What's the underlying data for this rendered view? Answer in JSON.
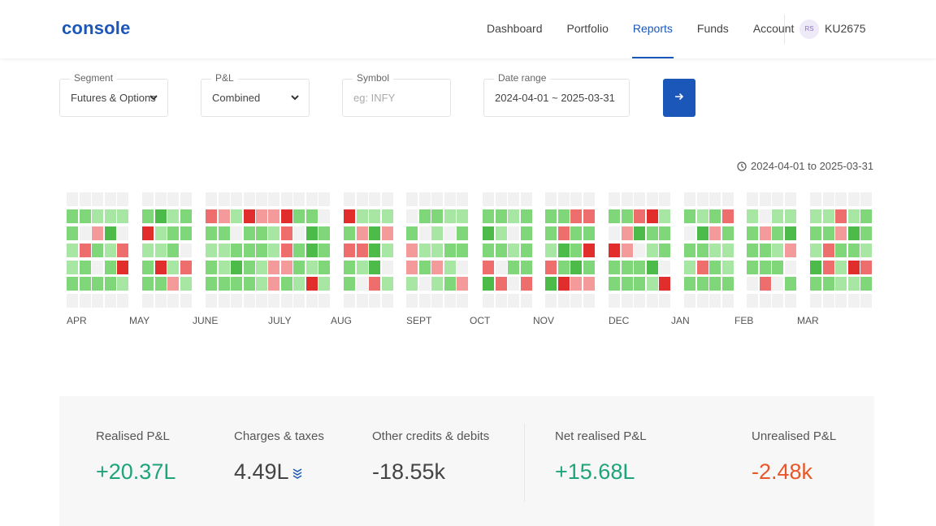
{
  "header": {
    "logo": "console",
    "nav": [
      "Dashboard",
      "Portfolio",
      "Reports",
      "Funds",
      "Account"
    ],
    "active_nav": "Reports",
    "avatar_initials": "RS",
    "user_id": "KU2675"
  },
  "filters": {
    "segment": {
      "label": "Segment",
      "value": "Futures & Options"
    },
    "pnl": {
      "label": "P&L",
      "value": "Combined"
    },
    "symbol": {
      "label": "Symbol",
      "placeholder": "eg: INFY"
    },
    "date_range": {
      "label": "Date range",
      "value": "2024-04-01 ~ 2025-03-31"
    },
    "submit_icon": "arrow-right-icon"
  },
  "range_label": "2024-04-01 to 2025-03-31",
  "heatmap": {
    "months": [
      "APR",
      "MAY",
      "JUNE",
      "JULY",
      "AUG",
      "SEPT",
      "OCT",
      "NOV",
      "DEC",
      "JAN",
      "FEB",
      "MAR"
    ],
    "legend": {
      "empty": "#f1f1f1",
      "profit_light": "#a8e6a3",
      "profit": "#7fd77a",
      "profit_strong": "#4cbb4a",
      "loss_light": "#f59a9a",
      "loss": "#ee6e6e",
      "loss_strong": "#e22d2d"
    }
  },
  "summary": {
    "realised": {
      "label": "Realised P&L",
      "value": "+20.37L"
    },
    "charges": {
      "label": "Charges & taxes",
      "value": "4.49L"
    },
    "other": {
      "label": "Other credits & debits",
      "value": "-18.55k"
    },
    "net": {
      "label": "Net realised P&L",
      "value": "+15.68L"
    },
    "unrealised": {
      "label": "Unrealised P&L",
      "value": "-2.48k"
    }
  },
  "colors": {
    "accent": "#1b57b8",
    "positive": "#1fa37a",
    "negative": "#e8572a"
  }
}
